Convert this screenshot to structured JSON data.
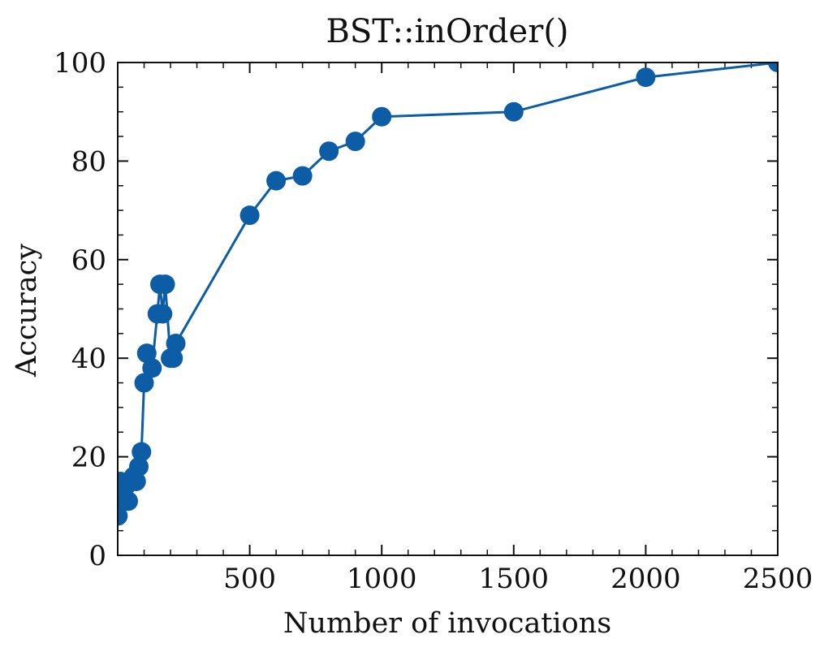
{
  "chart_data": {
    "type": "line",
    "title": "BST::inOrder()",
    "xlabel": "Number of invocations",
    "ylabel": "Accuracy",
    "xlim": [
      0,
      2500
    ],
    "ylim": [
      0,
      100
    ],
    "x_ticks": [
      500,
      1000,
      1500,
      2000,
      2500
    ],
    "y_ticks": [
      0,
      20,
      40,
      60,
      80,
      100
    ],
    "x_tick_labels": [
      "500",
      "1000",
      "1500",
      "2000",
      "2500"
    ],
    "y_tick_labels": [
      "0",
      "20",
      "40",
      "60",
      "80",
      "100"
    ],
    "grid": false,
    "legend": "none",
    "series": [
      {
        "color": "#0c5da5",
        "marker": "circle",
        "points": [
          {
            "x": 1,
            "y": 8
          },
          {
            "x": 10,
            "y": 15
          },
          {
            "x": 20,
            "y": 12
          },
          {
            "x": 30,
            "y": 14
          },
          {
            "x": 40,
            "y": 11
          },
          {
            "x": 60,
            "y": 16
          },
          {
            "x": 70,
            "y": 15
          },
          {
            "x": 80,
            "y": 18
          },
          {
            "x": 90,
            "y": 21
          },
          {
            "x": 100,
            "y": 35
          },
          {
            "x": 110,
            "y": 41
          },
          {
            "x": 130,
            "y": 38
          },
          {
            "x": 150,
            "y": 49
          },
          {
            "x": 160,
            "y": 55
          },
          {
            "x": 170,
            "y": 49
          },
          {
            "x": 180,
            "y": 55
          },
          {
            "x": 200,
            "y": 40
          },
          {
            "x": 210,
            "y": 40
          },
          {
            "x": 220,
            "y": 43
          },
          {
            "x": 500,
            "y": 69
          },
          {
            "x": 600,
            "y": 76
          },
          {
            "x": 700,
            "y": 77
          },
          {
            "x": 800,
            "y": 82
          },
          {
            "x": 900,
            "y": 84
          },
          {
            "x": 1000,
            "y": 89
          },
          {
            "x": 1500,
            "y": 90
          },
          {
            "x": 2000,
            "y": 97
          },
          {
            "x": 2500,
            "y": 100
          }
        ]
      }
    ]
  }
}
